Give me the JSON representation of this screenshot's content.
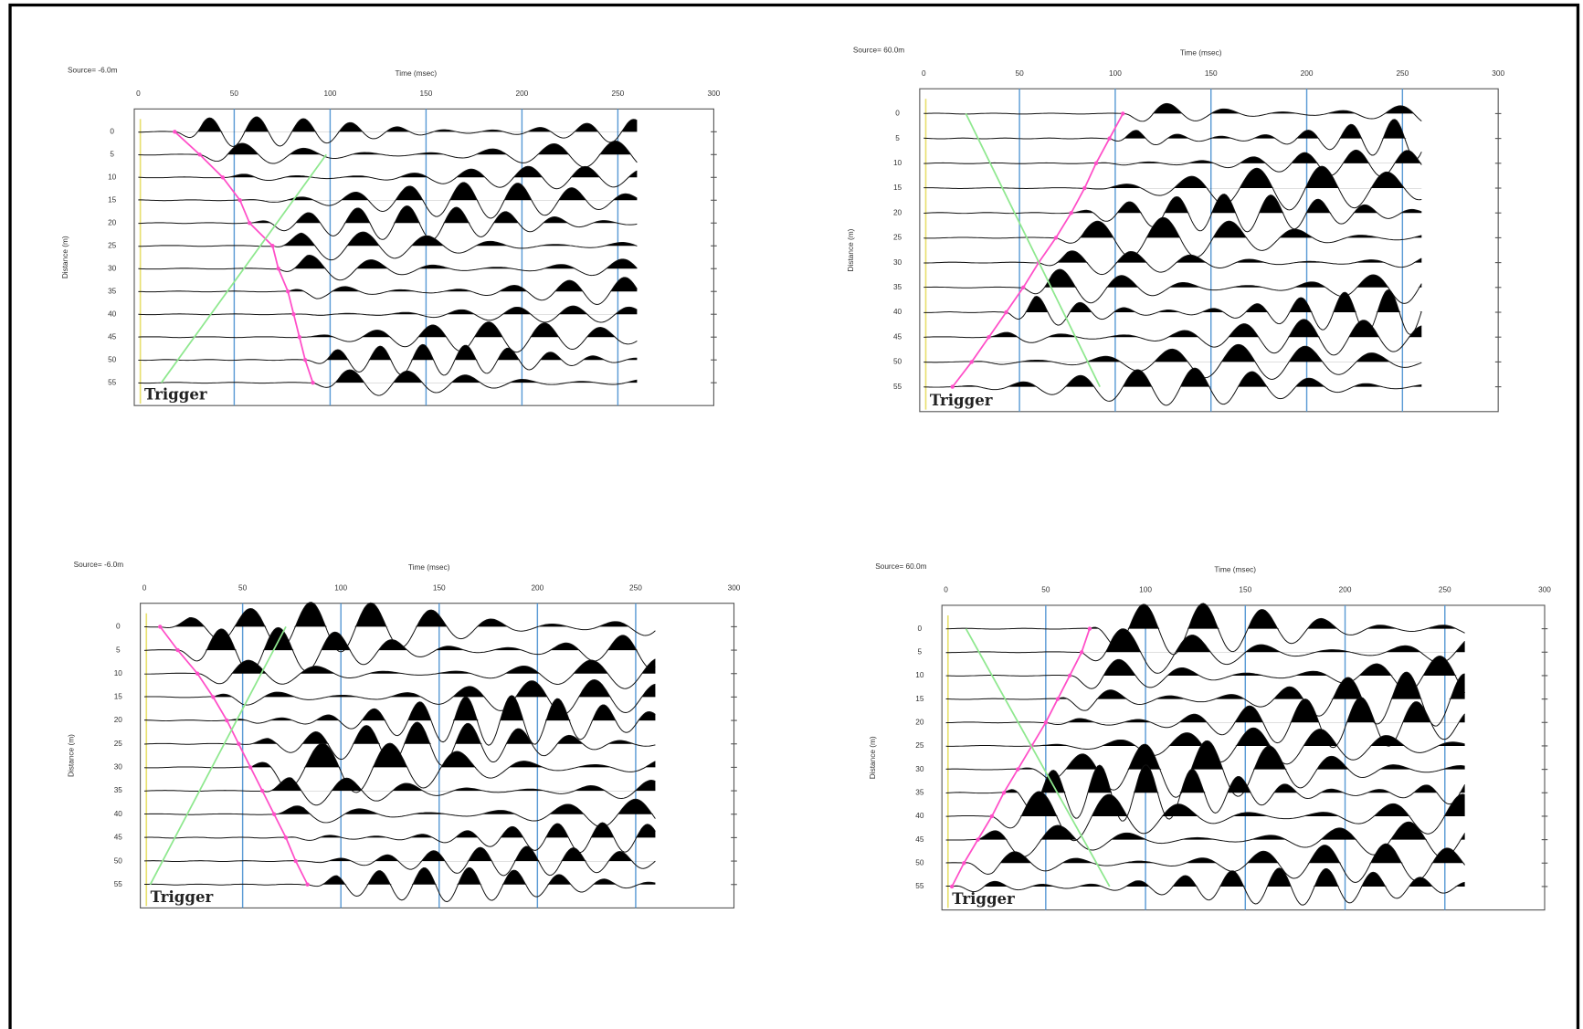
{
  "chart_data": [
    {
      "type": "seismic",
      "title": "Source= -6.0m",
      "xlabel": "Time (msec)",
      "ylabel": "Distance (m)",
      "annotation": "Trigger",
      "xlim": [
        0,
        300
      ],
      "xticks": [
        0,
        50,
        100,
        150,
        200,
        250,
        300
      ],
      "ylim": [
        -5,
        60
      ],
      "yticks": [
        0,
        5,
        10,
        15,
        20,
        25,
        30,
        35,
        40,
        45,
        50,
        55
      ],
      "grid": true,
      "grid_color": "#5b9bd5",
      "series": [
        {
          "color": "#ff4fc8",
          "x": [
            19,
            32,
            44,
            53,
            58,
            70,
            73,
            78,
            81,
            84,
            87,
            91
          ],
          "y": [
            0,
            5,
            10,
            15,
            20,
            25,
            30,
            35,
            40,
            45,
            50,
            55
          ]
        },
        {
          "color": "#8fe88f",
          "x": [
            98,
            12
          ],
          "y": [
            5,
            55
          ]
        }
      ]
    },
    {
      "type": "seismic",
      "title": "Source= 60.0m",
      "xlabel": "Time (msec)",
      "ylabel": "Distance (m)",
      "annotation": "Trigger",
      "xlim": [
        0,
        300
      ],
      "xticks": [
        0,
        50,
        100,
        150,
        200,
        250,
        300
      ],
      "ylim": [
        -5,
        60
      ],
      "yticks": [
        0,
        5,
        10,
        15,
        20,
        25,
        30,
        35,
        40,
        45,
        50,
        55
      ],
      "grid": true,
      "grid_color": "#5b9bd5",
      "series": [
        {
          "color": "#ff4fc8",
          "x": [
            104,
            97,
            90,
            84,
            77,
            69,
            60,
            52,
            43,
            34,
            25,
            15
          ],
          "y": [
            0,
            5,
            10,
            15,
            20,
            25,
            30,
            35,
            40,
            45,
            50,
            55
          ]
        },
        {
          "color": "#8fe88f",
          "x": [
            22,
            92
          ],
          "y": [
            0,
            55
          ]
        }
      ]
    },
    {
      "type": "seismic",
      "title": "Source= -6.0m",
      "xlabel": "Time (msec)",
      "ylabel": "Distance (m)",
      "annotation": "Trigger",
      "xlim": [
        0,
        300
      ],
      "xticks": [
        0,
        50,
        100,
        150,
        200,
        250,
        300
      ],
      "ylim": [
        -5,
        60
      ],
      "yticks": [
        0,
        5,
        10,
        15,
        20,
        25,
        30,
        35,
        40,
        45,
        50,
        55
      ],
      "grid": true,
      "grid_color": "#5b9bd5",
      "series": [
        {
          "color": "#ff4fc8",
          "x": [
            8,
            17,
            27,
            35,
            42,
            48,
            54,
            60,
            66,
            72,
            77,
            83
          ],
          "y": [
            0,
            5,
            10,
            15,
            20,
            25,
            30,
            35,
            40,
            45,
            50,
            55
          ]
        },
        {
          "color": "#8fe88f",
          "x": [
            72,
            3
          ],
          "y": [
            0,
            55
          ]
        }
      ]
    },
    {
      "type": "seismic",
      "title": "Source= 60.0m",
      "xlabel": "Time (msec)",
      "ylabel": "Distance (m)",
      "annotation": "Trigger",
      "xlim": [
        0,
        300
      ],
      "xticks": [
        0,
        50,
        100,
        150,
        200,
        250,
        300
      ],
      "ylim": [
        -5,
        60
      ],
      "yticks": [
        0,
        5,
        10,
        15,
        20,
        25,
        30,
        35,
        40,
        45,
        50,
        55
      ],
      "grid": true,
      "grid_color": "#5b9bd5",
      "series": [
        {
          "color": "#ff4fc8",
          "x": [
            72,
            68,
            62,
            56,
            50,
            43,
            36,
            29,
            23,
            16,
            9,
            3
          ],
          "y": [
            0,
            5,
            10,
            15,
            20,
            25,
            30,
            35,
            40,
            45,
            50,
            55
          ]
        },
        {
          "color": "#8fe88f",
          "x": [
            10,
            82
          ],
          "y": [
            0,
            55
          ]
        }
      ]
    }
  ]
}
